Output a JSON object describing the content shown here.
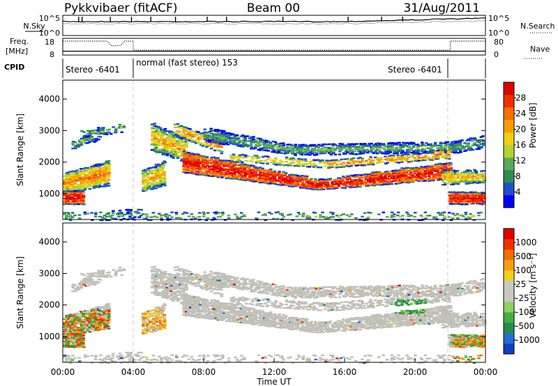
{
  "header": {
    "radar": "Pykkvibaer (fitACF)",
    "beam": "Beam 00",
    "date": "31/Aug/2011"
  },
  "status_panel": {
    "nsky_label": "N.Sky",
    "nsky_ticks": [
      "10^5",
      "10^0"
    ],
    "nsearch_label": "N.Search",
    "nsearch_ticks": [
      "10^5",
      "10^0"
    ],
    "freq_label": "Freq.",
    "freq_unit": "[MHz]",
    "freq_ticks": [
      "18",
      "8"
    ],
    "nave_label": "Nave",
    "nave_ticks": [
      "80",
      "0"
    ],
    "cpid_label": "CPID",
    "cpid_segments": [
      {
        "label": "Stereo -6401",
        "start_hour": 0,
        "end_hour": 4
      },
      {
        "label": "normal (fast stereo) 153",
        "start_hour": 4,
        "end_hour": 22
      },
      {
        "label": "Stereo -6401",
        "start_hour": 22,
        "end_hour": 24
      }
    ]
  },
  "chart_data": [
    {
      "type": "heatmap",
      "title": "",
      "xlabel": "Time UT",
      "ylabel": "Slant Range [km]",
      "x_ticks": [
        "00:00",
        "04:00",
        "08:00",
        "12:00",
        "16:00",
        "20:00",
        "00:00"
      ],
      "xlim_hours": [
        0,
        24
      ],
      "y_ticks": [
        1000,
        2000,
        3000,
        4000
      ],
      "ylim": [
        180,
        4600
      ],
      "colorbar": {
        "label": "Power [dB]",
        "ticks": [
          "4",
          "8",
          "12",
          "16",
          "20",
          "24",
          "28"
        ],
        "colors": [
          "#0000ff",
          "#1e50c8",
          "#2e8b57",
          "#5aaa55",
          "#b4d232",
          "#f0d010",
          "#f5a000",
          "#f57000",
          "#f03000",
          "#e00000"
        ]
      }
    },
    {
      "type": "heatmap",
      "title": "",
      "xlabel": "Time UT",
      "ylabel": "Slant Range [km]",
      "x_ticks": [
        "00:00",
        "04:00",
        "08:00",
        "12:00",
        "16:00",
        "20:00",
        "00:00"
      ],
      "xlim_hours": [
        0,
        24
      ],
      "y_ticks": [
        1000,
        2000,
        3000,
        4000
      ],
      "ylim": [
        180,
        4600
      ],
      "colorbar": {
        "label": "Velocity [m s⁻¹]",
        "ticks": [
          "1000",
          "500",
          "100",
          "25",
          "-25",
          "-100",
          "-500",
          "-1000"
        ],
        "colors": [
          "#1040c0",
          "#2070d0",
          "#2a8a4a",
          "#40b040",
          "#90d060",
          "#c8c8c0",
          "#c8c8c0",
          "#f0d020",
          "#f5a010",
          "#f07000",
          "#f03000",
          "#e00000"
        ]
      }
    }
  ],
  "colors": {
    "ground_scatter": "#c0c0b8",
    "guide_line": "#c8c8c8"
  }
}
